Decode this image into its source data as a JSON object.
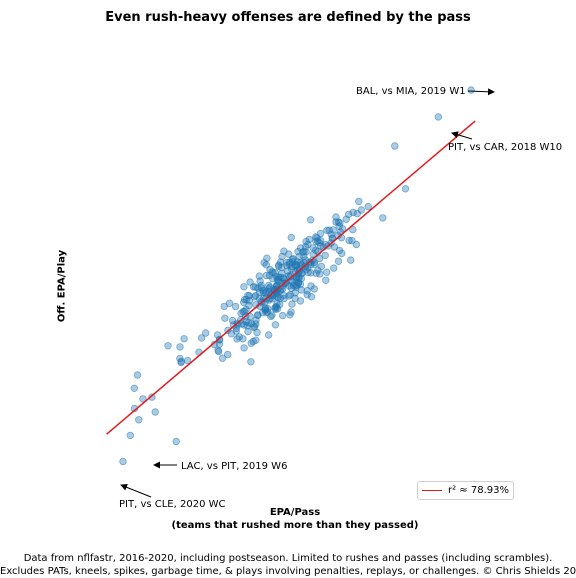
{
  "chart_data": {
    "type": "scatter",
    "title": "Even rush-heavy offenses are defined by the pass",
    "xlabel_line1": "EPA/Pass",
    "xlabel_line2": "(teams that rushed more than they passed)",
    "ylabel": "Off. EPA/Play",
    "footnote_line1": "Data from nflfastr, 2016-2020, including postseason. Limited to rushes and passes (including scrambles).",
    "footnote_line2": "Excludes PATs, kneels, spikes, garbage time, & plays involving penalties, replays, or challenges. © Chris Shields 2020",
    "legend": {
      "label": "r² ≈ 78.93%",
      "color": "#e41a1c",
      "placement": "lower-right"
    },
    "point_color": "#1f77b4",
    "grid": false,
    "xlim": [
      -1.05,
      1.05
    ],
    "ylim": [
      -0.78,
      0.52
    ],
    "fit_line": {
      "slope": 0.52,
      "intercept": -0.12
    },
    "outliers": [
      {
        "x": 0.86,
        "y": 0.43
      },
      {
        "x": 0.7,
        "y": 0.35
      },
      {
        "x": -0.84,
        "y": -0.68
      },
      {
        "x": -0.58,
        "y": -0.62
      }
    ],
    "annotations": [
      {
        "text": "BAL, vs MIA, 2019 W1"
      },
      {
        "text": "PIT, vs CAR, 2018 W10"
      },
      {
        "text": "LAC, vs PIT, 2019 W6"
      },
      {
        "text": "PIT, vs CLE, 2020 WC"
      }
    ]
  }
}
